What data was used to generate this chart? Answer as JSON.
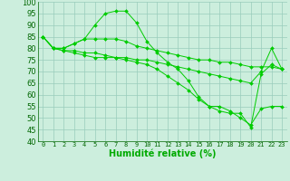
{
  "background_color": "#cceedd",
  "grid_color": "#99ccbb",
  "line_color": "#00cc00",
  "xlabel": "Humidité relative (%)",
  "xlabel_color": "#00aa00",
  "xlim": [
    -0.5,
    23.5
  ],
  "ylim": [
    40,
    100
  ],
  "yticks": [
    40,
    45,
    50,
    55,
    60,
    65,
    70,
    75,
    80,
    85,
    90,
    95,
    100
  ],
  "xticks": [
    0,
    1,
    2,
    3,
    4,
    5,
    6,
    7,
    8,
    9,
    10,
    11,
    12,
    13,
    14,
    15,
    16,
    17,
    18,
    19,
    20,
    21,
    22,
    23
  ],
  "series": [
    {
      "x": [
        0,
        1,
        2,
        3,
        4,
        5,
        6,
        7,
        8,
        9,
        10,
        11,
        12,
        13,
        14,
        15,
        16,
        17,
        18,
        19,
        20,
        21,
        22,
        23
      ],
      "y": [
        85,
        80,
        80,
        82,
        84,
        90,
        95,
        96,
        96,
        91,
        83,
        78,
        74,
        71,
        66,
        59,
        55,
        55,
        53,
        50,
        47,
        54,
        55,
        55
      ]
    },
    {
      "x": [
        0,
        1,
        2,
        3,
        4,
        5,
        6,
        7,
        8,
        9,
        10,
        11,
        12,
        13,
        14,
        15,
        16,
        17,
        18,
        19,
        20,
        21,
        22,
        23
      ],
      "y": [
        85,
        80,
        80,
        82,
        84,
        84,
        84,
        84,
        83,
        81,
        80,
        79,
        78,
        77,
        76,
        75,
        75,
        74,
        74,
        73,
        72,
        72,
        72,
        71
      ]
    },
    {
      "x": [
        0,
        1,
        2,
        3,
        4,
        5,
        6,
        7,
        8,
        9,
        10,
        11,
        12,
        13,
        14,
        15,
        16,
        17,
        18,
        19,
        20,
        21,
        22,
        23
      ],
      "y": [
        85,
        80,
        79,
        79,
        78,
        78,
        77,
        76,
        76,
        75,
        75,
        74,
        73,
        72,
        71,
        70,
        69,
        68,
        67,
        66,
        65,
        70,
        80,
        71
      ]
    },
    {
      "x": [
        0,
        1,
        2,
        3,
        4,
        5,
        6,
        7,
        8,
        9,
        10,
        11,
        12,
        13,
        14,
        15,
        16,
        17,
        18,
        19,
        20,
        21,
        22,
        23
      ],
      "y": [
        85,
        80,
        79,
        78,
        77,
        76,
        76,
        76,
        75,
        74,
        73,
        71,
        68,
        65,
        62,
        58,
        55,
        53,
        52,
        52,
        46,
        69,
        73,
        71
      ]
    }
  ]
}
